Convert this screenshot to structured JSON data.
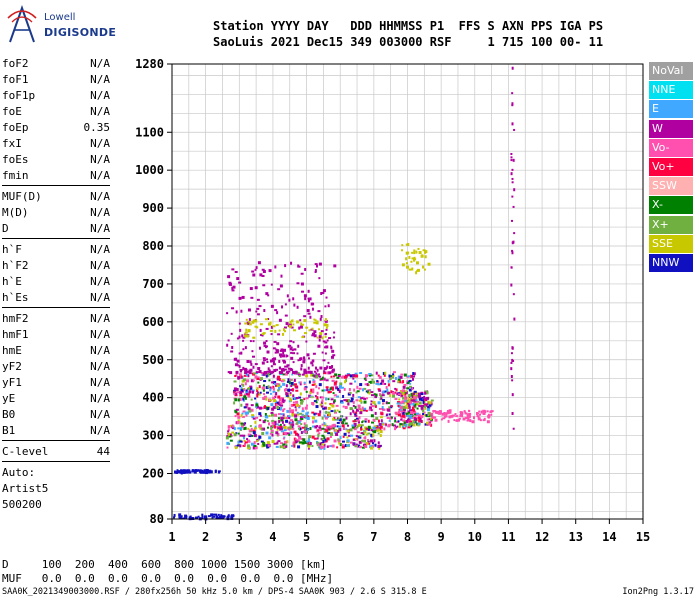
{
  "logo": {
    "brand_top": "Lowell",
    "brand_main": "DIGISONDE"
  },
  "header": {
    "line1": "Station YYYY DAY   DDD HHMMSS P1  FFS S AXN PPS IGA PS",
    "line2": "SaoLuis 2021 Dec15 349 003000 RSF     1 715 100 00- 11"
  },
  "params": [
    {
      "name": "foF2",
      "value": "N/A"
    },
    {
      "name": "foF1",
      "value": "N/A"
    },
    {
      "name": "foF1p",
      "value": "N/A"
    },
    {
      "name": "foE",
      "value": "N/A"
    },
    {
      "name": "foEp",
      "value": "0.35"
    },
    {
      "name": "fxI",
      "value": "N/A"
    },
    {
      "name": "foEs",
      "value": "N/A"
    },
    {
      "name": "fmin",
      "value": "N/A"
    },
    {
      "name": "MUF(D)",
      "value": "N/A"
    },
    {
      "name": "M(D)",
      "value": "N/A"
    },
    {
      "name": "D",
      "value": "N/A"
    },
    {
      "name": "h`F",
      "value": "N/A"
    },
    {
      "name": "h`F2",
      "value": "N/A"
    },
    {
      "name": "h`E",
      "value": "N/A"
    },
    {
      "name": "h`Es",
      "value": "N/A"
    },
    {
      "name": "hmF2",
      "value": "N/A"
    },
    {
      "name": "hmF1",
      "value": "N/A"
    },
    {
      "name": "hmE",
      "value": "N/A"
    },
    {
      "name": "yF2",
      "value": "N/A"
    },
    {
      "name": "yF1",
      "value": "N/A"
    },
    {
      "name": "yE",
      "value": "N/A"
    },
    {
      "name": "B0",
      "value": "N/A"
    },
    {
      "name": "B1",
      "value": "N/A"
    },
    {
      "name": "C-level",
      "value": "44"
    }
  ],
  "auto": {
    "label": "Auto:",
    "system": "Artist5",
    "version": "500200"
  },
  "legend": [
    {
      "label": "NoVal",
      "color": "#a0a0a0"
    },
    {
      "label": "NNE",
      "color": "#00e0f0"
    },
    {
      "label": "E",
      "color": "#40a8ff"
    },
    {
      "label": "W",
      "color": "#b000a0"
    },
    {
      "label": "Vo-",
      "color": "#ff50b0"
    },
    {
      "label": "Vo+",
      "color": "#ff0040"
    },
    {
      "label": "SSW",
      "color": "#ffb0b0"
    },
    {
      "label": "X-",
      "color": "#008000"
    },
    {
      "label": "X+",
      "color": "#70b040"
    },
    {
      "label": "SSE",
      "color": "#c8c800"
    },
    {
      "label": "NNW",
      "color": "#1010c0"
    }
  ],
  "footer": {
    "line1": "D     100  200  400  600  800 1000 1500 3000 [km]",
    "line2": "MUF   0.0  0.0  0.0  0.0  0.0  0.0  0.0  0.0 [MHz]"
  },
  "bottom": {
    "info": "SAA0K_2021349003000.RSF / 280fx256h 50 kHz 5.0 km / DPS-4 SAA0K 903 / 2.6 S 315.8 E",
    "version": "Ion2Png 1.3.17"
  },
  "chart_data": {
    "type": "scatter",
    "title": "",
    "xlabel": "",
    "ylabel": "",
    "x_unit": "MHz",
    "y_unit": "km",
    "xlim": [
      1,
      15
    ],
    "ylim": [
      80,
      1280
    ],
    "x_ticks": [
      1,
      2,
      3,
      4,
      5,
      6,
      7,
      8,
      9,
      10,
      11,
      12,
      13,
      14,
      15
    ],
    "y_ticks": [
      80,
      200,
      300,
      400,
      500,
      600,
      700,
      800,
      900,
      1000,
      1100,
      1280
    ],
    "grid": true,
    "legend_position": "right",
    "regions": [
      {
        "name": "E-layer echo",
        "x": [
          1.0,
          2.4
        ],
        "y": [
          205,
          212
        ],
        "series": "NNW"
      },
      {
        "name": "low sporadic",
        "x": [
          1.0,
          2.8
        ],
        "y": [
          84,
          95
        ],
        "series": "NNW"
      },
      {
        "name": "F-layer lower trace",
        "x": [
          2.6,
          7.2
        ],
        "y": [
          270,
          330
        ],
        "series": "Vo+"
      },
      {
        "name": "F-layer spread",
        "x": [
          2.8,
          8.2
        ],
        "y": [
          320,
          470
        ],
        "series": "W"
      },
      {
        "name": "F-layer upper spread",
        "x": [
          2.6,
          5.8
        ],
        "y": [
          470,
          760
        ],
        "series": "W"
      },
      {
        "name": "oblique echo",
        "x": [
          3.1,
          5.6
        ],
        "y": [
          560,
          610
        ],
        "series": "SSE"
      },
      {
        "name": "cluster 8MHz",
        "x": [
          7.7,
          8.7
        ],
        "y": [
          330,
          420
        ],
        "series": "Vo-"
      },
      {
        "name": "trace 9-10MHz",
        "x": [
          8.7,
          10.5
        ],
        "y": [
          340,
          370
        ],
        "series": "Vo-"
      },
      {
        "name": "high oblique",
        "x": [
          7.8,
          8.6
        ],
        "y": [
          730,
          810
        ],
        "series": "SSE"
      },
      {
        "name": "vertical 11.1",
        "x": [
          11.05,
          11.15
        ],
        "y": [
          320,
          1280
        ],
        "series": "W"
      }
    ]
  }
}
